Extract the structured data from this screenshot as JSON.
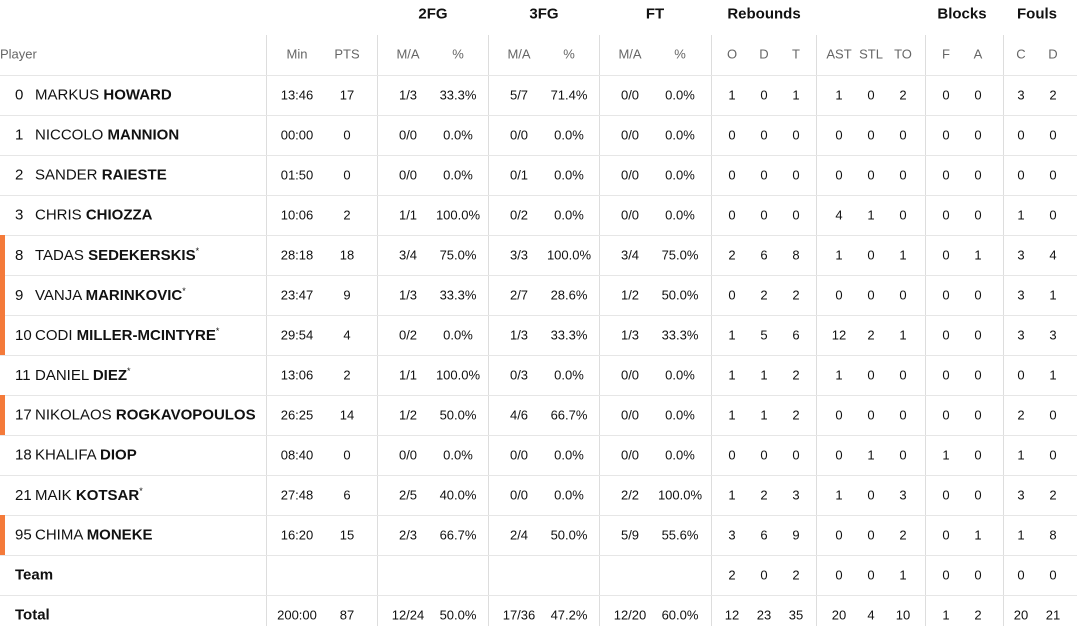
{
  "table": {
    "group_headers": [
      "2FG",
      "3FG",
      "FT",
      "Rebounds",
      "Blocks",
      "Fouls"
    ],
    "player_header": "Player",
    "column_headers": [
      "Min",
      "PTS",
      "M/A",
      "%",
      "M/A",
      "%",
      "M/A",
      "%",
      "O",
      "D",
      "T",
      "AST",
      "STL",
      "TO",
      "F",
      "A",
      "C",
      "D"
    ],
    "rows": [
      {
        "number": "0",
        "first": "MARKUS",
        "last": "HOWARD",
        "marked": false,
        "stats": [
          "13:46",
          "17",
          "1/3",
          "33.3%",
          "5/7",
          "71.4%",
          "0/0",
          "0.0%",
          "1",
          "0",
          "1",
          "1",
          "0",
          "2",
          "0",
          "0",
          "3",
          "2"
        ]
      },
      {
        "number": "1",
        "first": "NICCOLO",
        "last": "MANNION",
        "marked": false,
        "stats": [
          "00:00",
          "0",
          "0/0",
          "0.0%",
          "0/0",
          "0.0%",
          "0/0",
          "0.0%",
          "0",
          "0",
          "0",
          "0",
          "0",
          "0",
          "0",
          "0",
          "0",
          "0"
        ]
      },
      {
        "number": "2",
        "first": "SANDER",
        "last": "RAIESTE",
        "marked": false,
        "stats": [
          "01:50",
          "0",
          "0/0",
          "0.0%",
          "0/1",
          "0.0%",
          "0/0",
          "0.0%",
          "0",
          "0",
          "0",
          "0",
          "0",
          "0",
          "0",
          "0",
          "0",
          "0"
        ]
      },
      {
        "number": "3",
        "first": "CHRIS",
        "last": "CHIOZZA",
        "marked": false,
        "stats": [
          "10:06",
          "2",
          "1/1",
          "100.0%",
          "0/2",
          "0.0%",
          "0/0",
          "0.0%",
          "0",
          "0",
          "0",
          "4",
          "1",
          "0",
          "0",
          "0",
          "1",
          "0"
        ]
      },
      {
        "number": "8",
        "first": "TADAS",
        "last": "SEDEKERSKIS",
        "starter": "*",
        "marked": true,
        "stats": [
          "28:18",
          "18",
          "3/4",
          "75.0%",
          "3/3",
          "100.0%",
          "3/4",
          "75.0%",
          "2",
          "6",
          "8",
          "1",
          "0",
          "1",
          "0",
          "1",
          "3",
          "4"
        ]
      },
      {
        "number": "9",
        "first": "VANJA",
        "last": "MARINKOVIC",
        "starter": "*",
        "marked": true,
        "stats": [
          "23:47",
          "9",
          "1/3",
          "33.3%",
          "2/7",
          "28.6%",
          "1/2",
          "50.0%",
          "0",
          "2",
          "2",
          "0",
          "0",
          "0",
          "0",
          "0",
          "3",
          "1"
        ]
      },
      {
        "number": "10",
        "first": "CODI",
        "last": "MILLER-MCINTYRE",
        "starter": "*",
        "marked": true,
        "stats": [
          "29:54",
          "4",
          "0/2",
          "0.0%",
          "1/3",
          "33.3%",
          "1/3",
          "33.3%",
          "1",
          "5",
          "6",
          "12",
          "2",
          "1",
          "0",
          "0",
          "3",
          "3"
        ]
      },
      {
        "number": "11",
        "first": "DANIEL",
        "last": "DIEZ",
        "starter": "*",
        "marked": false,
        "stats": [
          "13:06",
          "2",
          "1/1",
          "100.0%",
          "0/3",
          "0.0%",
          "0/0",
          "0.0%",
          "1",
          "1",
          "2",
          "1",
          "0",
          "0",
          "0",
          "0",
          "0",
          "1"
        ]
      },
      {
        "number": "17",
        "first": "NIKOLAOS",
        "last": "ROGKAVOPOULOS",
        "marked": true,
        "stats": [
          "26:25",
          "14",
          "1/2",
          "50.0%",
          "4/6",
          "66.7%",
          "0/0",
          "0.0%",
          "1",
          "1",
          "2",
          "0",
          "0",
          "0",
          "0",
          "0",
          "2",
          "0"
        ]
      },
      {
        "number": "18",
        "first": "KHALIFA",
        "last": "DIOP",
        "marked": false,
        "stats": [
          "08:40",
          "0",
          "0/0",
          "0.0%",
          "0/0",
          "0.0%",
          "0/0",
          "0.0%",
          "0",
          "0",
          "0",
          "0",
          "1",
          "0",
          "1",
          "0",
          "1",
          "0"
        ]
      },
      {
        "number": "21",
        "first": "MAIK",
        "last": "KOTSAR",
        "starter": "*",
        "marked": false,
        "stats": [
          "27:48",
          "6",
          "2/5",
          "40.0%",
          "0/0",
          "0.0%",
          "2/2",
          "100.0%",
          "1",
          "2",
          "3",
          "1",
          "0",
          "3",
          "0",
          "0",
          "3",
          "2"
        ]
      },
      {
        "number": "95",
        "first": "CHIMA",
        "last": "MONEKE",
        "marked": true,
        "stats": [
          "16:20",
          "15",
          "2/3",
          "66.7%",
          "2/4",
          "50.0%",
          "5/9",
          "55.6%",
          "3",
          "6",
          "9",
          "0",
          "0",
          "2",
          "0",
          "1",
          "1",
          "8"
        ]
      }
    ],
    "team": {
      "label": "Team",
      "stats": [
        null,
        null,
        null,
        null,
        null,
        null,
        null,
        null,
        "2",
        "0",
        "2",
        "0",
        "0",
        "1",
        "0",
        "0",
        "0",
        "0"
      ]
    },
    "total": {
      "label": "Total",
      "stats": [
        "200:00",
        "87",
        "12/24",
        "50.0%",
        "17/36",
        "47.2%",
        "12/20",
        "60.0%",
        "12",
        "23",
        "35",
        "20",
        "4",
        "10",
        "1",
        "2",
        "20",
        "21"
      ]
    }
  }
}
